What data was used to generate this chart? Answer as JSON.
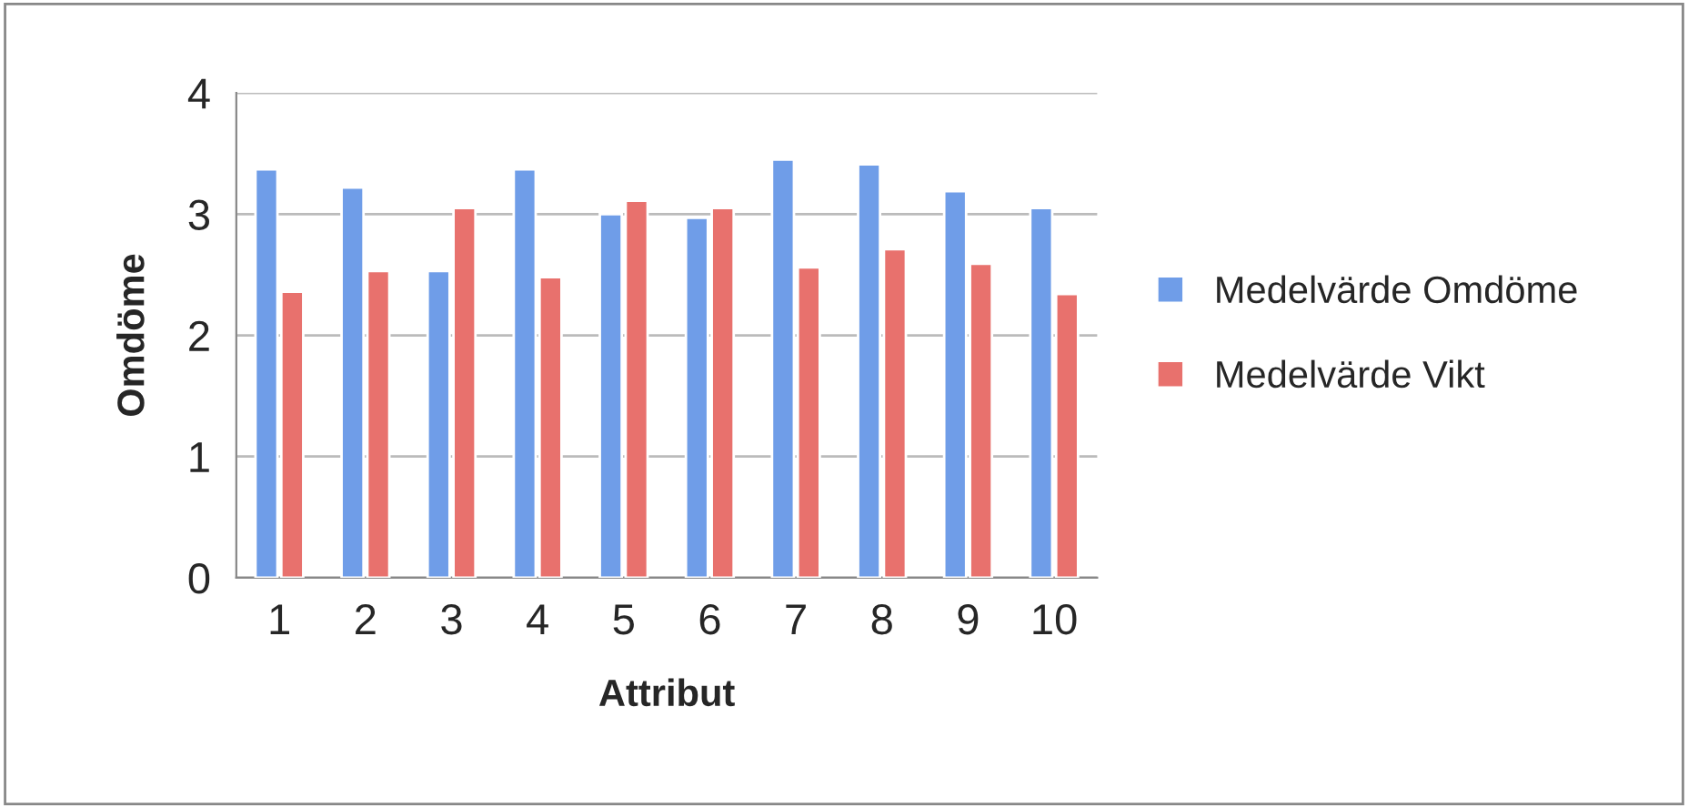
{
  "chart_data": {
    "type": "bar",
    "xlabel": "Attribut",
    "ylabel": "Omdöme",
    "categories": [
      "1",
      "2",
      "3",
      "4",
      "5",
      "6",
      "7",
      "8",
      "9",
      "10"
    ],
    "series": [
      {
        "name": "Medelvärde Omdöme",
        "color": "#6f9de8",
        "values": [
          3.37,
          3.22,
          2.53,
          3.37,
          3.0,
          2.97,
          3.45,
          3.41,
          3.19,
          3.05
        ]
      },
      {
        "name": "Medelvärde Vikt",
        "color": "#e8716d",
        "values": [
          2.36,
          2.53,
          3.05,
          2.48,
          3.11,
          3.05,
          2.56,
          2.71,
          2.59,
          2.34
        ]
      }
    ],
    "ylim": [
      0,
      4
    ],
    "yticks": [
      0,
      1,
      2,
      3,
      4
    ],
    "grid": "y",
    "legend": "right"
  }
}
